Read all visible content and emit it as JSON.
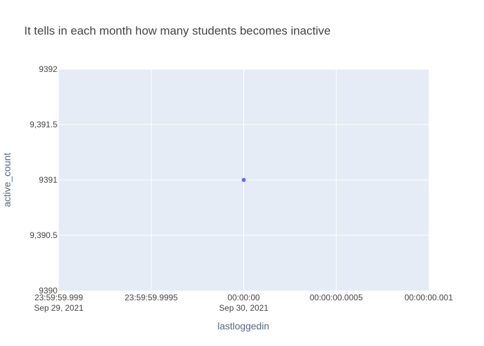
{
  "chart_data": {
    "type": "scatter",
    "title": "It tells in each month how many students becomes inactive",
    "xlabel": "lastloggedin",
    "ylabel": "active_count",
    "x_ticks": [
      {
        "line1": "23:59:59.999",
        "line2": "Sep 29, 2021"
      },
      {
        "line1": "23:59:59.9995",
        "line2": ""
      },
      {
        "line1": "00:00:00",
        "line2": "Sep 30, 2021"
      },
      {
        "line1": "00:00:00.0005",
        "line2": ""
      },
      {
        "line1": "00:00:00.001",
        "line2": ""
      }
    ],
    "x_tick_offsets_ms": [
      -1,
      -0.5,
      0,
      0.5,
      1
    ],
    "xlim_ms": [
      -1,
      1
    ],
    "y_ticks": [
      "9390",
      "9,390.5",
      "9391",
      "9,391.5",
      "9392"
    ],
    "y_tick_values": [
      9390,
      9390.5,
      9391,
      9391.5,
      9392
    ],
    "ylim": [
      9390,
      9392
    ],
    "points": [
      {
        "x": "2021-09-30 00:00:00",
        "y": 9391
      }
    ],
    "grid": true,
    "colors": {
      "plot_bg": "#e5ecf6",
      "grid": "#ffffff",
      "marker": "#636efa"
    }
  }
}
